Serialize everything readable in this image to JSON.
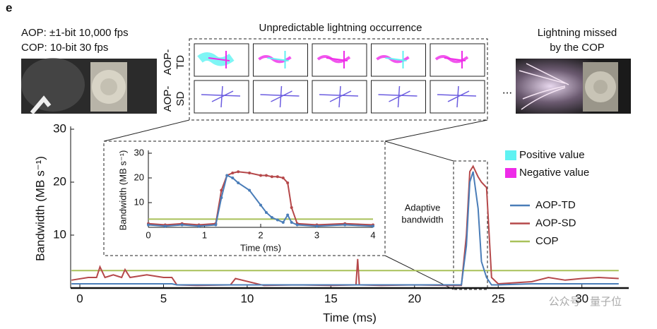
{
  "figure": {
    "panel_label": "e",
    "aop_caption": "AOP: ±1-bit 10,000 fps",
    "cop_caption": "COP: 10-bit 30 fps",
    "top_title": "Unpredictable lightning occurrence",
    "missed_caption": [
      "Lightning missed",
      "by the COP"
    ],
    "row_labels": [
      [
        "AOP-",
        "TD"
      ],
      [
        "AOP-",
        "SD"
      ]
    ],
    "ellipsis": "...",
    "value_legend": [
      {
        "name": "Positive value",
        "color": "#5ff2f2"
      },
      {
        "name": "Negative value",
        "color": "#ee2be8"
      }
    ],
    "adaptive": [
      "Adaptive",
      "bandwidth"
    ],
    "watermark": "公众号 · 量子位"
  },
  "chart_data": [
    {
      "type": "line",
      "ylabel": "Bandwidth (MB s⁻¹)",
      "xlabel": "Time (ms)",
      "xlim": [
        -0.55,
        32.8
      ],
      "ylim": [
        0,
        30
      ],
      "xticks": [
        0,
        5,
        10,
        15,
        20,
        25,
        30
      ],
      "yticks": [
        10,
        20,
        30
      ],
      "x": [
        -0.5,
        0.5,
        1,
        1.2,
        1.5,
        2,
        2.5,
        2.7,
        3,
        4,
        5,
        5.5,
        5.8,
        7,
        9,
        9.3,
        11,
        13,
        15,
        16.5,
        16.6,
        16.7,
        18,
        20,
        22,
        22.8,
        23.1,
        23.3,
        23.5,
        23.8,
        24,
        24.3,
        24.6,
        25,
        27,
        28,
        29,
        30,
        31,
        32.2
      ],
      "series": [
        {
          "name": "AOP-TD",
          "color": "#4a7db8",
          "values": [
            0.8,
            0.8,
            0.8,
            0.8,
            0.8,
            0.8,
            0.8,
            0.8,
            0.8,
            0.8,
            0.8,
            0.8,
            0.6,
            0.6,
            0.6,
            0.6,
            0.6,
            0.6,
            0.6,
            0.6,
            0.6,
            0.6,
            0.6,
            0.6,
            0.6,
            0.6,
            8,
            20,
            22,
            15,
            5,
            2,
            0.6,
            0.6,
            0.8,
            0.8,
            0.8,
            0.8,
            0.8,
            0.8
          ]
        },
        {
          "name": "AOP-SD",
          "color": "#b5484a",
          "values": [
            1.5,
            2,
            2,
            4,
            2,
            2.5,
            2,
            3.5,
            2,
            2.5,
            2,
            2,
            0.6,
            0.5,
            0.6,
            1.8,
            0.5,
            0.6,
            0.5,
            0.6,
            5.5,
            0.6,
            0.5,
            0.6,
            0.5,
            0.5,
            10,
            22,
            23,
            21,
            20,
            19,
            2,
            0.8,
            1.2,
            2,
            1.5,
            1.8,
            2,
            1.8
          ]
        },
        {
          "name": "COP",
          "color": "#a9c15a",
          "values": [
            3.3,
            3.3,
            3.3,
            3.3,
            3.3,
            3.3,
            3.3,
            3.3,
            3.3,
            3.3,
            3.3,
            3.3,
            3.3,
            3.3,
            3.3,
            3.3,
            3.3,
            3.3,
            3.3,
            3.3,
            3.3,
            3.3,
            3.3,
            3.3,
            3.3,
            3.3,
            3.3,
            3.3,
            3.3,
            3.3,
            3.3,
            3.3,
            3.3,
            3.3,
            3.3,
            3.3,
            3.3,
            3.3,
            3.3,
            3.3
          ]
        }
      ]
    },
    {
      "type": "line",
      "ylabel": "Bandwidth (MB s⁻¹)",
      "xlabel": "Time (ms)",
      "xlim": [
        0,
        4
      ],
      "ylim": [
        0,
        30
      ],
      "xticks": [
        0,
        1,
        2,
        3,
        4
      ],
      "yticks": [
        10,
        20,
        30
      ],
      "x": [
        0,
        0.3,
        0.6,
        0.9,
        1.2,
        1.3,
        1.4,
        1.5,
        1.6,
        1.8,
        2.0,
        2.1,
        2.2,
        2.3,
        2.4,
        2.48,
        2.55,
        2.65,
        3,
        3.5,
        4
      ],
      "series": [
        {
          "color": "#4a7db8",
          "values": [
            1,
            0.5,
            1,
            0.5,
            1,
            12,
            21,
            20,
            18,
            15,
            9,
            6,
            4,
            3,
            2,
            5,
            2,
            1,
            0.5,
            1,
            0.5
          ]
        },
        {
          "color": "#b5484a",
          "values": [
            1.5,
            1,
            1.5,
            1,
            1.5,
            15,
            21,
            22,
            22.5,
            22,
            21,
            21,
            20.5,
            20.5,
            20,
            18,
            8,
            1.5,
            1,
            1.5,
            1
          ]
        },
        {
          "color": "#a9c15a",
          "values": [
            3.3,
            3.3,
            3.3,
            3.3,
            3.3,
            3.3,
            3.3,
            3.3,
            3.3,
            3.3,
            3.3,
            3.3,
            3.3,
            3.3,
            3.3,
            3.3,
            3.3,
            3.3,
            3.3,
            3.3,
            3.3
          ]
        }
      ]
    }
  ]
}
